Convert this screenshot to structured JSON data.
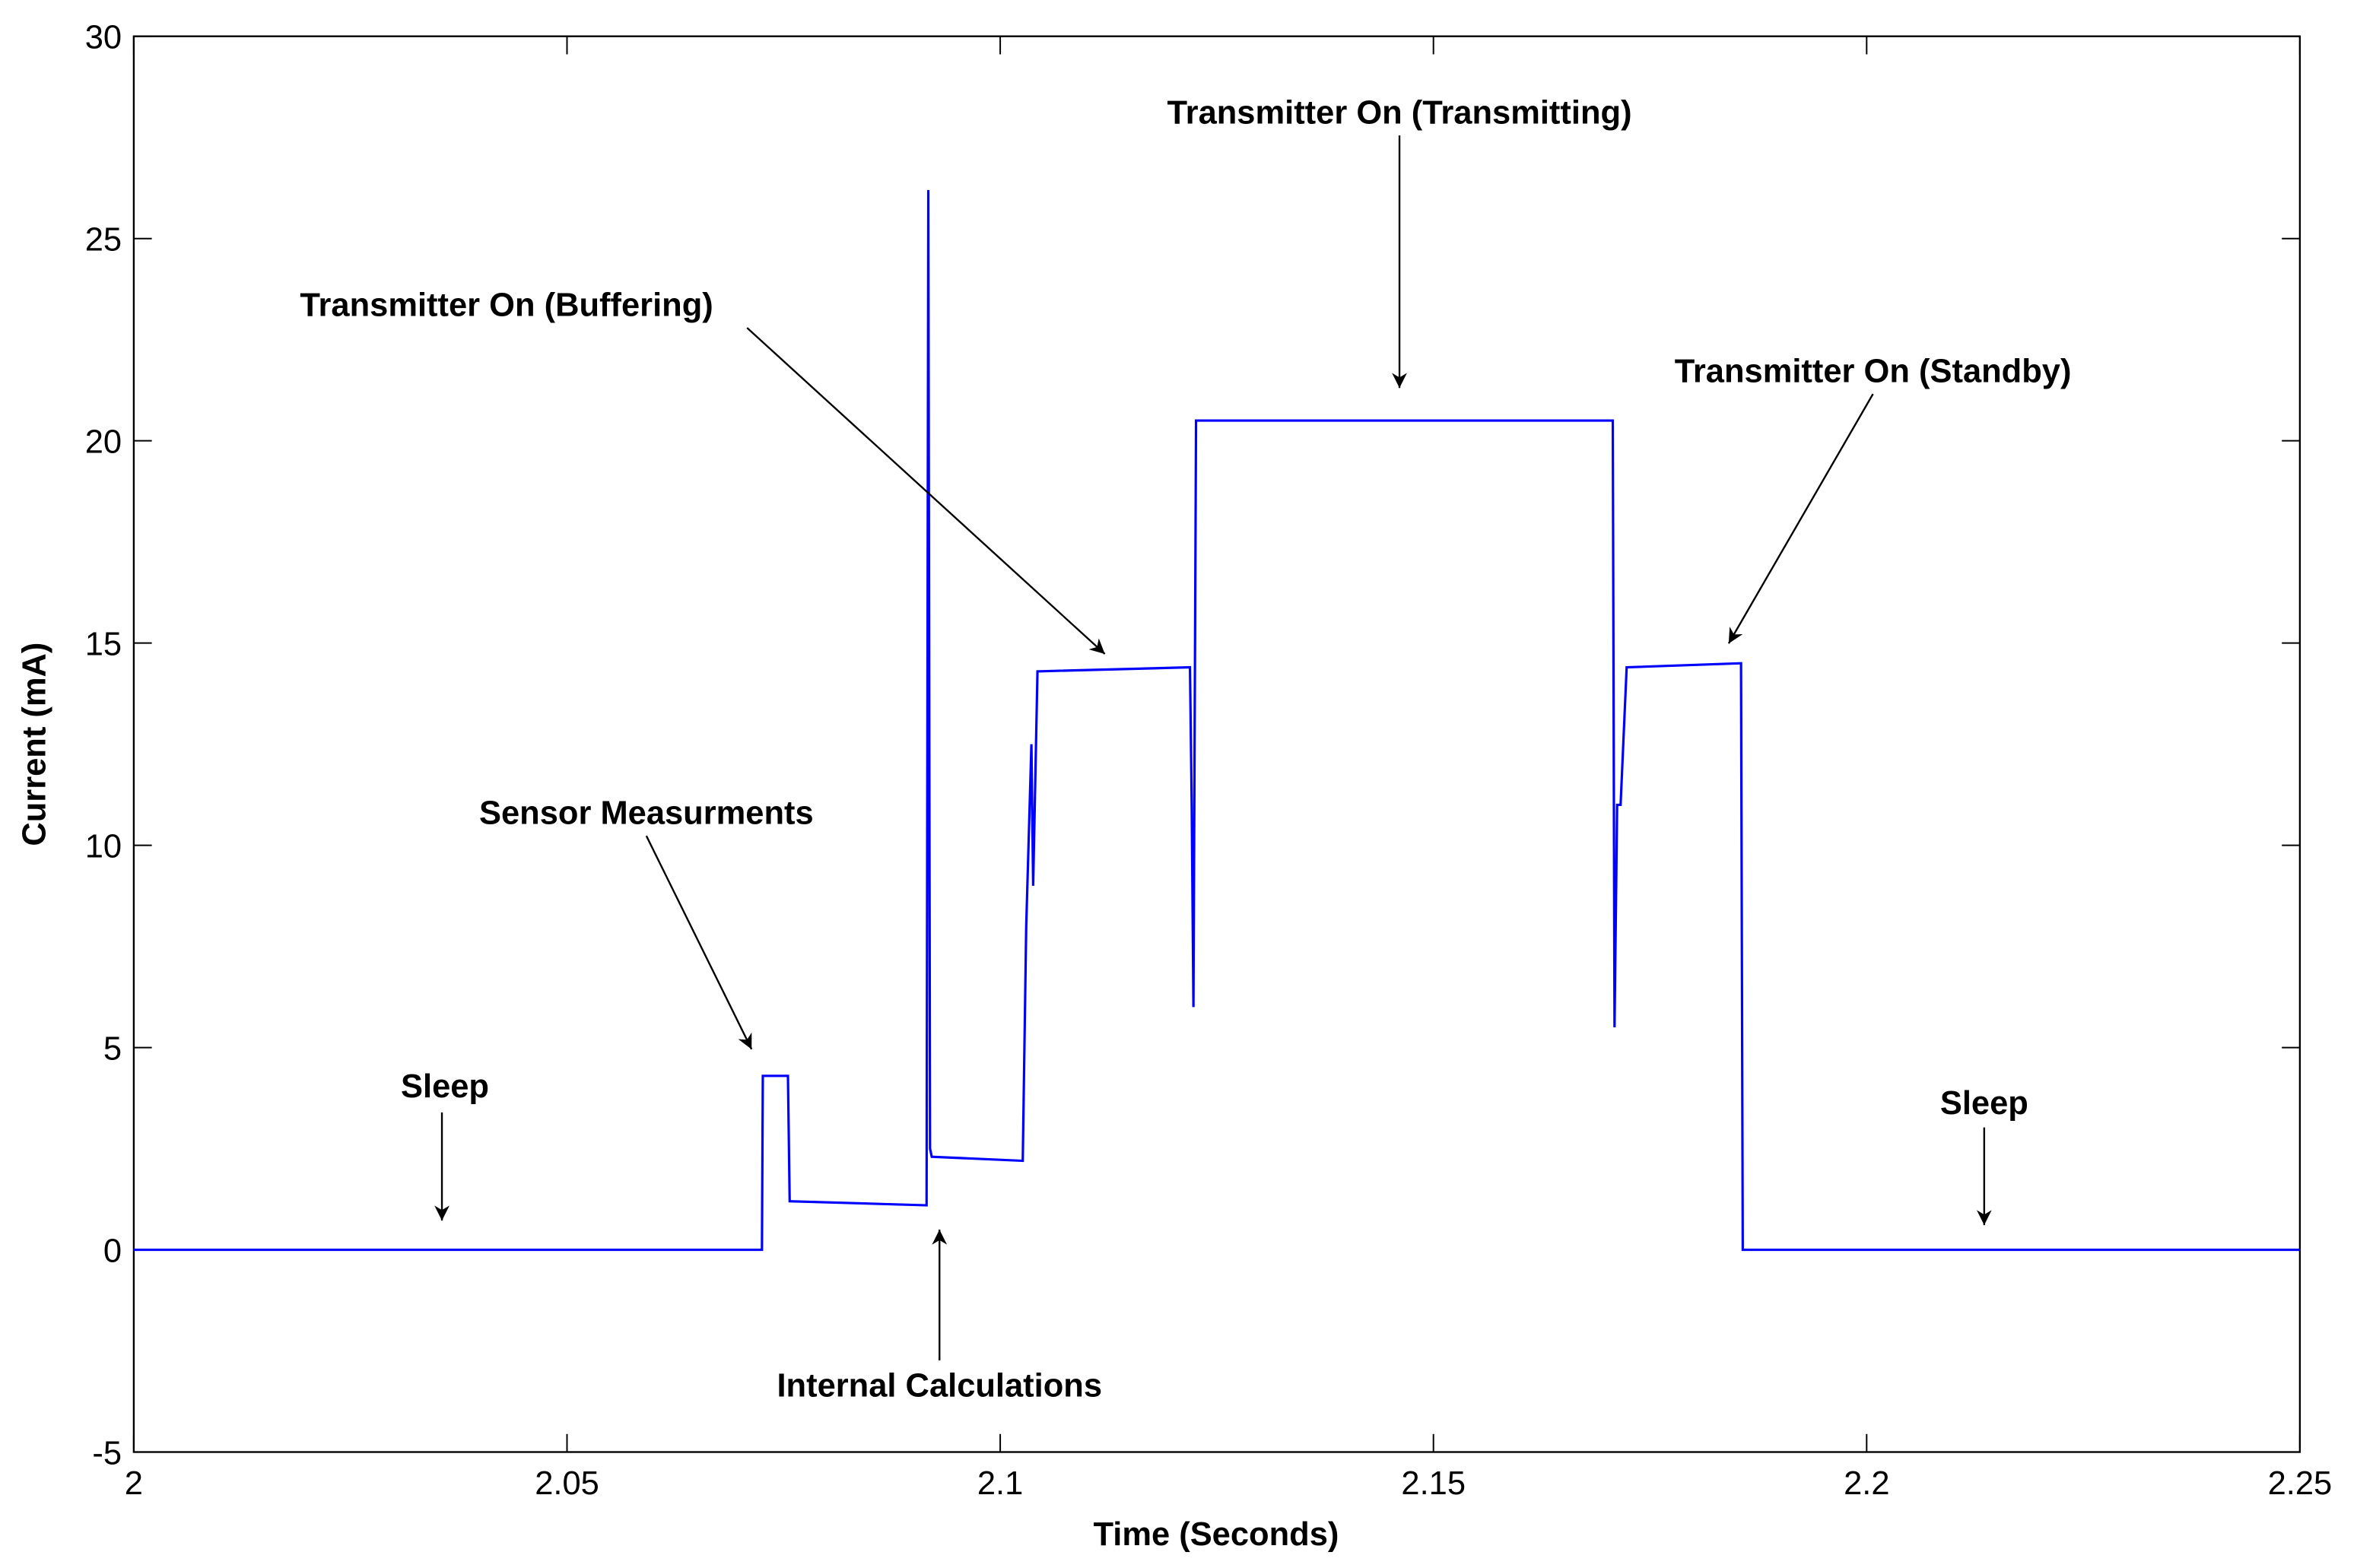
{
  "chart_data": {
    "type": "line",
    "xlabel": "Time (Seconds)",
    "ylabel": "Current (mA)",
    "xlim": [
      2,
      2.25
    ],
    "xticks": [
      2,
      2.05,
      2.1,
      2.15,
      2.2,
      2.25
    ],
    "ylim": [
      -5,
      30
    ],
    "yticks": [
      -5,
      0,
      5,
      10,
      15,
      20,
      25,
      30
    ],
    "grid": false,
    "series": [
      {
        "color": "#0000ff",
        "x": [
          2.0,
          2.0725,
          2.0726,
          2.0755,
          2.0757,
          2.0915,
          2.0917,
          2.0919,
          2.0921,
          2.1026,
          2.103,
          2.1036,
          2.1038,
          2.1043,
          2.1219,
          2.1221,
          2.1223,
          2.1226,
          2.1707,
          2.1709,
          2.1712,
          2.1716,
          2.1723,
          2.1855,
          2.1857,
          2.25
        ],
        "values": [
          0.0,
          0.0,
          4.3,
          4.3,
          1.2,
          1.1,
          26.2,
          2.5,
          2.3,
          2.2,
          8.0,
          12.5,
          9.0,
          14.3,
          14.4,
          11.0,
          6.0,
          20.5,
          20.5,
          5.5,
          11.0,
          11.0,
          14.4,
          14.5,
          0.0,
          0.0
        ]
      }
    ],
    "annotations": [
      {
        "text": "Sleep"
      },
      {
        "text": "Sensor Measurments"
      },
      {
        "text": "Internal Calculations"
      },
      {
        "text": "Transmitter On (Buffering)"
      },
      {
        "text": "Transmitter On (Transmitting)"
      },
      {
        "text": "Transmitter On (Standby)"
      },
      {
        "text": "Sleep"
      }
    ]
  }
}
